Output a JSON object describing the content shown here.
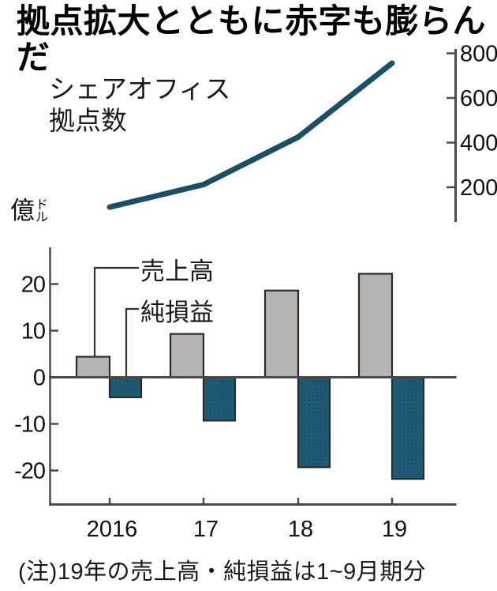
{
  "title": "拠点拡大とともに赤字も膨らんだ",
  "note": "(注)19年の売上高・純損益は1~9月期分",
  "colors": {
    "line": "#1c4e66",
    "teal_bar": "#1e5a73",
    "gray_bar": "#b5b4b2",
    "bar_border": "#2b2b2b",
    "axis": "#4a4a4a",
    "connector": "#333333",
    "text": "#111111"
  },
  "chart_data": [
    {
      "type": "line",
      "label": "シェアオフィス\n拠点数",
      "x": [
        "2016",
        "17",
        "18",
        "19"
      ],
      "values": [
        111,
        212,
        425,
        756
      ],
      "yticks": [
        800,
        600,
        400,
        200
      ],
      "ylim": [
        0,
        830
      ],
      "axis_side": "right",
      "grid": false,
      "legend_position": "annotation-left"
    },
    {
      "type": "bar",
      "unit_kanji": "億",
      "unit_sub_top": "ド",
      "unit_sub_bottom": "ル",
      "categories": [
        "2016",
        "17",
        "18",
        "19"
      ],
      "series": [
        {
          "name": "売上高",
          "values": [
            4.4,
            9.3,
            18.6,
            22.2
          ],
          "color": "#b5b4b2"
        },
        {
          "name": "純損益",
          "values": [
            -4.3,
            -9.3,
            -19.3,
            -21.8
          ],
          "color": "#1e5a73"
        }
      ],
      "yticks": [
        20,
        10,
        0,
        -10,
        -20
      ],
      "ylim": [
        -25,
        27
      ],
      "grid": false,
      "legend_position": "callout-lines"
    }
  ]
}
